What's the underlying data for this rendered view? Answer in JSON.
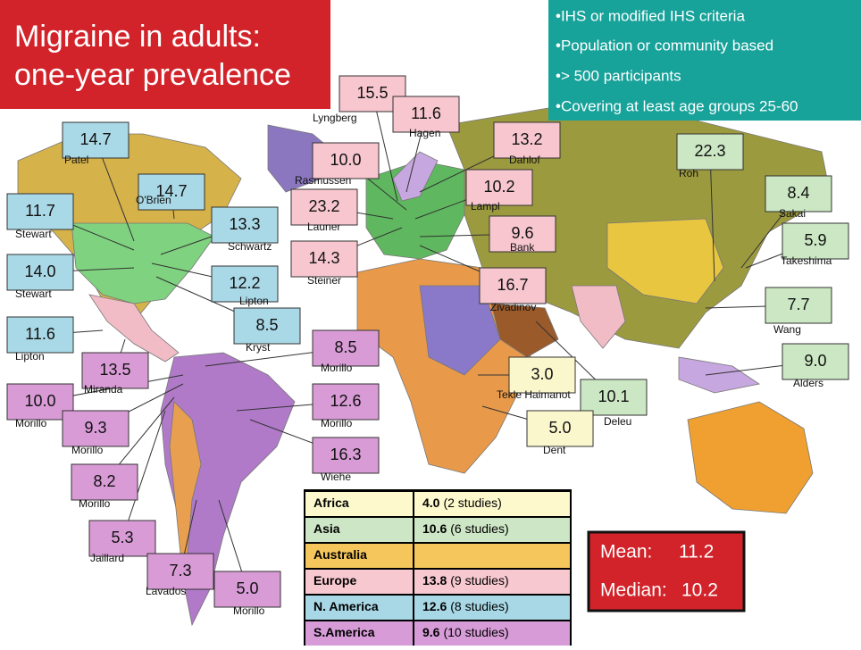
{
  "title": [
    "Migraine in adults:",
    "one-year prevalence"
  ],
  "criteria": [
    "•IHS or modified IHS criteria",
    "•Population or community based",
    "•> 500 participants",
    "•Covering at least age groups 25-60"
  ],
  "callouts": [
    {
      "value": "14.7",
      "author": "Patel"
    },
    {
      "value": "14.7",
      "author": "O'Brien"
    },
    {
      "value": "11.7",
      "author": "Stewart"
    },
    {
      "value": "13.3",
      "author": "Schwartz"
    },
    {
      "value": "14.0",
      "author": "Stewart"
    },
    {
      "value": "12.2",
      "author": "Lipton"
    },
    {
      "value": "11.6",
      "author": "Lipton"
    },
    {
      "value": "8.5",
      "author": "Kryst"
    },
    {
      "value": "15.5",
      "author": "Lyngberg"
    },
    {
      "value": "11.6",
      "author": "Hagen"
    },
    {
      "value": "13.2",
      "author": "Dahlof"
    },
    {
      "value": "10.0",
      "author": "Rasmussen"
    },
    {
      "value": "10.2",
      "author": "Lampl"
    },
    {
      "value": "23.2",
      "author": "Launer"
    },
    {
      "value": "9.6",
      "author": "Bank"
    },
    {
      "value": "14.3",
      "author": "Steiner"
    },
    {
      "value": "16.7",
      "author": "Zivadinov"
    },
    {
      "value": "22.3",
      "author": "Roh"
    },
    {
      "value": "8.4",
      "author": "Sakai"
    },
    {
      "value": "5.9",
      "author": "Takeshima"
    },
    {
      "value": "7.7",
      "author": "Wang"
    },
    {
      "value": "9.0",
      "author": "Alders"
    },
    {
      "value": "10.1",
      "author": "Deleu"
    },
    {
      "value": "3.0",
      "author": "Tekle Haimanot"
    },
    {
      "value": "5.0",
      "author": "Dent"
    },
    {
      "value": "8.5",
      "author": "Morillo"
    },
    {
      "value": "13.5",
      "author": "Miranda"
    },
    {
      "value": "10.0",
      "author": "Morillo"
    },
    {
      "value": "12.6",
      "author": "Morillo"
    },
    {
      "value": "9.3",
      "author": "Morillo"
    },
    {
      "value": "16.3",
      "author": "Wiehe"
    },
    {
      "value": "8.2",
      "author": "Morillo"
    },
    {
      "value": "5.3",
      "author": "Jaillard"
    },
    {
      "value": "7.3",
      "author": "Lavados"
    },
    {
      "value": "5.0",
      "author": "Morillo"
    }
  ],
  "table": {
    "rows": [
      {
        "region": "Africa",
        "value": "4.0",
        "note": "(2 studies)"
      },
      {
        "region": "Asia",
        "value": "10.6",
        "note": "(6 studies)"
      },
      {
        "region": "Australia"
      },
      {
        "region": "Europe",
        "value": "13.8",
        "note": "(9 studies)"
      },
      {
        "region": "N. America",
        "value": "12.6",
        "note": "(8 studies)"
      },
      {
        "region": "S.America",
        "value": "9.6",
        "note": "(10 studies)"
      }
    ]
  },
  "summary": {
    "mean_label": "Mean:",
    "mean": "11.2",
    "median_label": "Median:",
    "median": "10.2"
  }
}
